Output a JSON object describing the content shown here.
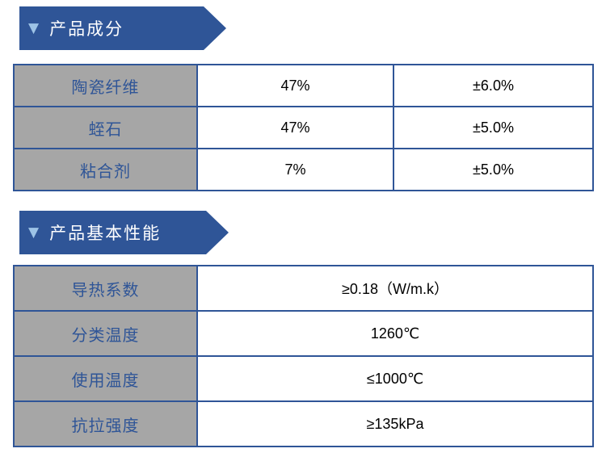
{
  "sections": [
    {
      "title": "产品成分"
    },
    {
      "title": "产品基本性能"
    }
  ],
  "icons": {
    "banner_triangle": "▼"
  },
  "colors": {
    "banner_blue": "#2F5597",
    "triangle_light_blue": "#9DC3E6",
    "label_cell_gray": "#A6A6A6",
    "label_text_blue": "#2F5597",
    "border_blue": "#2F5597",
    "value_text": "#000000"
  },
  "composition_table": {
    "rows": [
      {
        "label": "陶瓷纤维",
        "value": "47%",
        "tolerance": "±6.0%"
      },
      {
        "label": "蛭石",
        "value": "47%",
        "tolerance": "±5.0%"
      },
      {
        "label": "粘合剂",
        "value": "7%",
        "tolerance": "±5.0%"
      }
    ]
  },
  "properties_table": {
    "rows": [
      {
        "label": "导热系数",
        "value": "≥0.18（W/m.k）"
      },
      {
        "label": "分类温度",
        "value": "1260℃"
      },
      {
        "label": "使用温度",
        "value": "≤1000℃"
      },
      {
        "label": "抗拉强度",
        "value": "≥135kPa"
      }
    ]
  }
}
